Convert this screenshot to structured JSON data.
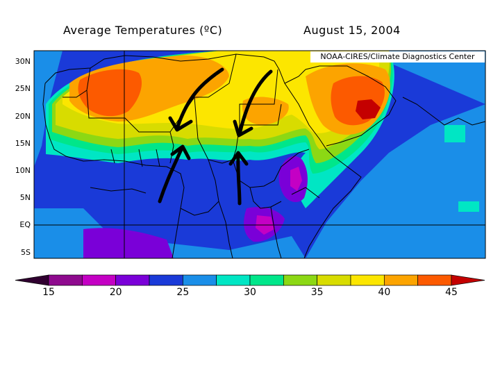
{
  "title": {
    "left": "Average Temperatures (ºC)",
    "right": "August 15, 2004"
  },
  "credit": "NOAA-CIRES/Climate Diagnostics Center",
  "latitude_labels": [
    "30N",
    "25N",
    "20N",
    "15N",
    "10N",
    "5N",
    "EQ",
    "5S"
  ],
  "colorbar": {
    "tick_labels": [
      "15",
      "20",
      "25",
      "30",
      "35",
      "40",
      "45"
    ],
    "bins": [
      {
        "color": "#300030"
      },
      {
        "color": "#8e0a8e"
      },
      {
        "color": "#c400c4"
      },
      {
        "color": "#7a00d8"
      },
      {
        "color": "#1a3ad8"
      },
      {
        "color": "#1a8ee8"
      },
      {
        "color": "#00e6c4"
      },
      {
        "color": "#00e68a"
      },
      {
        "color": "#8cd814"
      },
      {
        "color": "#d8dc00"
      },
      {
        "color": "#fce600"
      },
      {
        "color": "#fca400"
      },
      {
        "color": "#fc5a00"
      },
      {
        "color": "#c40000"
      }
    ]
  },
  "arrows": [
    {
      "direction": "southwest"
    },
    {
      "direction": "southwest"
    },
    {
      "direction": "north"
    },
    {
      "direction": "north"
    }
  ]
}
